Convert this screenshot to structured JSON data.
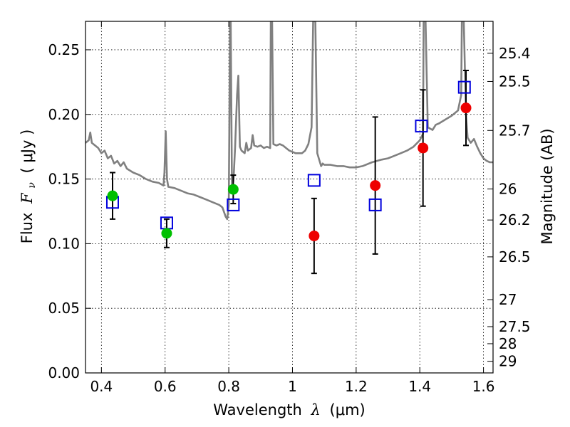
{
  "chart_data": {
    "type": "scatter",
    "xlabel": "Wavelength",
    "xlabel_symbol": "λ",
    "xlabel_unit": "(μm)",
    "ylabel": "Flux",
    "ylabel_symbol": "F",
    "ylabel_subscript": "ν",
    "ylabel_unit": "( μJy )",
    "y2label": "Magnitude (AB)",
    "xlim": [
      0.35,
      1.63
    ],
    "ylim": [
      0.0,
      0.272
    ],
    "grid": true,
    "x_ticks": [
      {
        "value": 0.4,
        "label": "0.4"
      },
      {
        "value": 0.6,
        "label": "0.6"
      },
      {
        "value": 0.8,
        "label": "0.8"
      },
      {
        "value": 1.0,
        "label": "1"
      },
      {
        "value": 1.2,
        "label": "1.2"
      },
      {
        "value": 1.4,
        "label": "1.4"
      },
      {
        "value": 1.6,
        "label": "1.6"
      }
    ],
    "y_ticks": [
      {
        "value": 0.0,
        "label": "0.00"
      },
      {
        "value": 0.05,
        "label": "0.05"
      },
      {
        "value": 0.1,
        "label": "0.10"
      },
      {
        "value": 0.15,
        "label": "0.15"
      },
      {
        "value": 0.2,
        "label": "0.20"
      },
      {
        "value": 0.25,
        "label": "0.25"
      }
    ],
    "mag_ticks": [
      {
        "label": "25.4",
        "flux": 0.2473
      },
      {
        "label": "25.5",
        "flux": 0.2255
      },
      {
        "label": "25.7",
        "flux": 0.1876
      },
      {
        "label": "26",
        "flux": 0.1423
      },
      {
        "label": "26.2",
        "flux": 0.1183
      },
      {
        "label": "26.5",
        "flux": 0.0898
      },
      {
        "label": "27",
        "flux": 0.0567
      },
      {
        "label": "27.5",
        "flux": 0.0358
      },
      {
        "label": "28",
        "flux": 0.0226
      },
      {
        "label": "29",
        "flux": 0.009
      }
    ],
    "observed_points": [
      {
        "x": 0.435,
        "y": 0.137,
        "err": 0.018,
        "color": "#00c000"
      },
      {
        "x": 0.605,
        "y": 0.108,
        "err": 0.011,
        "color": "#00c000"
      },
      {
        "x": 0.814,
        "y": 0.142,
        "err": 0.011,
        "color": "#00c000"
      },
      {
        "x": 1.068,
        "y": 0.106,
        "err": 0.029,
        "color": "#ee0000"
      },
      {
        "x": 1.26,
        "y": 0.145,
        "err": 0.053,
        "color": "#ee0000"
      },
      {
        "x": 1.41,
        "y": 0.174,
        "err": 0.045,
        "color": "#ee0000"
      },
      {
        "x": 1.545,
        "y": 0.205,
        "err": 0.029,
        "color": "#ee0000"
      }
    ],
    "model_points": [
      {
        "x": 0.435,
        "y": 0.132
      },
      {
        "x": 0.605,
        "y": 0.116
      },
      {
        "x": 0.814,
        "y": 0.13
      },
      {
        "x": 1.068,
        "y": 0.149
      },
      {
        "x": 1.26,
        "y": 0.13
      },
      {
        "x": 1.405,
        "y": 0.191
      },
      {
        "x": 1.54,
        "y": 0.221
      }
    ],
    "model_spectrum": {
      "color": "#808080",
      "points": [
        [
          0.35,
          0.178
        ],
        [
          0.36,
          0.18
        ],
        [
          0.365,
          0.186
        ],
        [
          0.37,
          0.178
        ],
        [
          0.38,
          0.176
        ],
        [
          0.39,
          0.174
        ],
        [
          0.4,
          0.17
        ],
        [
          0.41,
          0.172
        ],
        [
          0.42,
          0.166
        ],
        [
          0.43,
          0.168
        ],
        [
          0.44,
          0.162
        ],
        [
          0.45,
          0.164
        ],
        [
          0.46,
          0.16
        ],
        [
          0.47,
          0.163
        ],
        [
          0.48,
          0.158
        ],
        [
          0.5,
          0.155
        ],
        [
          0.52,
          0.153
        ],
        [
          0.54,
          0.15
        ],
        [
          0.56,
          0.148
        ],
        [
          0.58,
          0.147
        ],
        [
          0.595,
          0.145
        ],
        [
          0.598,
          0.155
        ],
        [
          0.602,
          0.187
        ],
        [
          0.606,
          0.15
        ],
        [
          0.61,
          0.144
        ],
        [
          0.63,
          0.143
        ],
        [
          0.65,
          0.141
        ],
        [
          0.67,
          0.139
        ],
        [
          0.69,
          0.138
        ],
        [
          0.71,
          0.136
        ],
        [
          0.73,
          0.134
        ],
        [
          0.75,
          0.132
        ],
        [
          0.77,
          0.13
        ],
        [
          0.78,
          0.128
        ],
        [
          0.79,
          0.121
        ],
        [
          0.795,
          0.119
        ],
        [
          0.8,
          0.13
        ],
        [
          0.804,
          0.272
        ],
        [
          0.806,
          0.272
        ],
        [
          0.81,
          0.14
        ],
        [
          0.815,
          0.15
        ],
        [
          0.82,
          0.175
        ],
        [
          0.826,
          0.215
        ],
        [
          0.83,
          0.23
        ],
        [
          0.835,
          0.175
        ],
        [
          0.84,
          0.172
        ],
        [
          0.85,
          0.17
        ],
        [
          0.855,
          0.178
        ],
        [
          0.86,
          0.172
        ],
        [
          0.87,
          0.174
        ],
        [
          0.875,
          0.184
        ],
        [
          0.88,
          0.176
        ],
        [
          0.89,
          0.175
        ],
        [
          0.9,
          0.176
        ],
        [
          0.91,
          0.174
        ],
        [
          0.92,
          0.175
        ],
        [
          0.93,
          0.174
        ],
        [
          0.932,
          0.272
        ],
        [
          0.936,
          0.272
        ],
        [
          0.94,
          0.177
        ],
        [
          0.95,
          0.176
        ],
        [
          0.96,
          0.177
        ],
        [
          0.97,
          0.176
        ],
        [
          0.98,
          0.174
        ],
        [
          0.99,
          0.172
        ],
        [
          1.0,
          0.171
        ],
        [
          1.01,
          0.17
        ],
        [
          1.02,
          0.17
        ],
        [
          1.03,
          0.17
        ],
        [
          1.04,
          0.172
        ],
        [
          1.05,
          0.177
        ],
        [
          1.06,
          0.19
        ],
        [
          1.065,
          0.272
        ],
        [
          1.072,
          0.272
        ],
        [
          1.078,
          0.17
        ],
        [
          1.085,
          0.164
        ],
        [
          1.09,
          0.16
        ],
        [
          1.095,
          0.162
        ],
        [
          1.1,
          0.161
        ],
        [
          1.12,
          0.161
        ],
        [
          1.14,
          0.16
        ],
        [
          1.16,
          0.16
        ],
        [
          1.18,
          0.159
        ],
        [
          1.2,
          0.159
        ],
        [
          1.22,
          0.16
        ],
        [
          1.25,
          0.163
        ],
        [
          1.28,
          0.165
        ],
        [
          1.3,
          0.166
        ],
        [
          1.32,
          0.168
        ],
        [
          1.34,
          0.17
        ],
        [
          1.36,
          0.172
        ],
        [
          1.38,
          0.175
        ],
        [
          1.4,
          0.18
        ],
        [
          1.41,
          0.185
        ],
        [
          1.412,
          0.272
        ],
        [
          1.418,
          0.272
        ],
        [
          1.425,
          0.19
        ],
        [
          1.44,
          0.188
        ],
        [
          1.45,
          0.192
        ],
        [
          1.46,
          0.193
        ],
        [
          1.48,
          0.196
        ],
        [
          1.5,
          0.199
        ],
        [
          1.52,
          0.203
        ],
        [
          1.53,
          0.215
        ],
        [
          1.532,
          0.272
        ],
        [
          1.538,
          0.272
        ],
        [
          1.545,
          0.2
        ],
        [
          1.55,
          0.182
        ],
        [
          1.56,
          0.178
        ],
        [
          1.57,
          0.181
        ],
        [
          1.58,
          0.175
        ],
        [
          1.59,
          0.17
        ],
        [
          1.6,
          0.166
        ],
        [
          1.61,
          0.164
        ],
        [
          1.62,
          0.163
        ],
        [
          1.63,
          0.163
        ]
      ]
    }
  }
}
